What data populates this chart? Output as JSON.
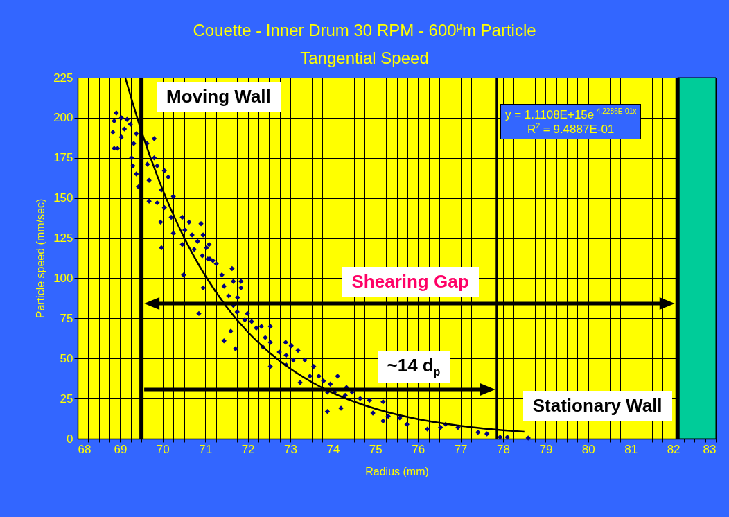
{
  "chart_data": {
    "type": "scatter",
    "title": "Couette - Inner Drum 30 RPM - 600$^{μ}$m Particle",
    "subtitle": "Tangential Speed",
    "xlabel": "Radius (mm)",
    "ylabel": "Particle speed (mm/sec)",
    "xlim": [
      68,
      83
    ],
    "ylim": [
      0,
      225
    ],
    "xticks": [
      68,
      {
        "value": 68.25,
        "label": null
      },
      {
        "value": 68.5,
        "label": null
      },
      {
        "value": 68.75,
        "label": null
      },
      69,
      {
        "value": 69.25,
        "label": null
      },
      {
        "value": 69.5,
        "label": null
      },
      {
        "value": 69.75,
        "label": null
      },
      70,
      {
        "value": 70.25,
        "label": null
      },
      {
        "value": 70.5,
        "label": null
      },
      {
        "value": 70.75,
        "label": null
      },
      71,
      {
        "value": 71.25,
        "label": null
      },
      {
        "value": 71.5,
        "label": null
      },
      {
        "value": 71.75,
        "label": null
      },
      72,
      {
        "value": 72.25,
        "label": null
      },
      {
        "value": 72.5,
        "label": null
      },
      {
        "value": 72.75,
        "label": null
      },
      73,
      {
        "value": 73.25,
        "label": null
      },
      {
        "value": 73.5,
        "label": null
      },
      {
        "value": 73.75,
        "label": null
      },
      74,
      {
        "value": 74.25,
        "label": null
      },
      {
        "value": 74.5,
        "label": null
      },
      {
        "value": 74.75,
        "label": null
      },
      75,
      {
        "value": 75.25,
        "label": null
      },
      {
        "value": 75.5,
        "label": null
      },
      {
        "value": 75.75,
        "label": null
      },
      76,
      {
        "value": 76.25,
        "label": null
      },
      {
        "value": 76.5,
        "label": null
      },
      {
        "value": 76.75,
        "label": null
      },
      77,
      {
        "value": 77.25,
        "label": null
      },
      {
        "value": 77.5,
        "label": null
      },
      {
        "value": 77.75,
        "label": null
      },
      78,
      {
        "value": 78.25,
        "label": null
      },
      {
        "value": 78.5,
        "label": null
      },
      {
        "value": 78.75,
        "label": null
      },
      79,
      {
        "value": 79.25,
        "label": null
      },
      {
        "value": 79.5,
        "label": null
      },
      {
        "value": 79.75,
        "label": null
      },
      80,
      {
        "value": 80.25,
        "label": null
      },
      {
        "value": 80.5,
        "label": null
      },
      {
        "value": 80.75,
        "label": null
      },
      81,
      {
        "value": 81.25,
        "label": null
      },
      {
        "value": 81.5,
        "label": null
      },
      {
        "value": 81.75,
        "label": null
      },
      82,
      {
        "value": 82.25,
        "label": null
      },
      {
        "value": 82.5,
        "label": null
      },
      {
        "value": 82.75,
        "label": null
      },
      83
    ],
    "yticks": [
      0,
      25,
      50,
      75,
      100,
      125,
      150,
      175,
      200,
      225
    ],
    "grid": true,
    "series": [
      {
        "marker": "diamond",
        "color": "#000080",
        "x": [
          68.91,
          68.86,
          68.83,
          68.86,
          68.94,
          69.03,
          69.16,
          69.1,
          69.03,
          69.24,
          69.38,
          69.32,
          69.27,
          69.3,
          69.38,
          69.43,
          69.68,
          69.64,
          69.8,
          69.63,
          69.8,
          69.87,
          70.04,
          70.13,
          69.68,
          69.87,
          69.97,
          70.25,
          70.04,
          69.95,
          70.2,
          70.46,
          70.62,
          70.9,
          70.25,
          70.52,
          70.46,
          70.69,
          69.97,
          70.95,
          70.74,
          70.93,
          71.06,
          71.18,
          71.09,
          70.82,
          70.49,
          71.03,
          71.11,
          71.26,
          71.63,
          71.66,
          71.84,
          71.84,
          70.95,
          71.39,
          71.44,
          71.55,
          71.76,
          71.66,
          71.75,
          70.85,
          71.99,
          71.93,
          72.09,
          72.2,
          71.6,
          71.44,
          71.71,
          72.32,
          72.53,
          72.41,
          72.53,
          72.36,
          72.89,
          73.02,
          73.18,
          72.74,
          72.9,
          73.07,
          73.34,
          72.9,
          72.53,
          73.23,
          73.55,
          73.67,
          73.46,
          73.78,
          73.94,
          74.11,
          73.87,
          74.04,
          73.87,
          74.19,
          74.32,
          74.45,
          74.29,
          74.64,
          74.86,
          74.94,
          75.18,
          75.18,
          75.3,
          75.57,
          75.74,
          76.22,
          76.53,
          76.65,
          76.94,
          77.41,
          77.62,
          77.93,
          78.1,
          78.59
        ],
        "values": [
          203,
          198,
          191,
          181,
          181,
          200,
          199,
          193,
          188,
          196,
          190,
          184,
          175,
          170,
          165,
          157,
          161,
          171,
          187,
          184,
          175,
          170,
          167,
          163,
          148,
          147,
          155,
          151,
          144,
          135,
          138,
          138,
          135,
          134,
          128,
          130,
          121,
          127,
          119,
          127,
          118,
          114,
          112,
          111,
          121,
          123,
          102,
          119,
          112,
          109,
          106,
          98,
          98,
          94,
          94,
          102,
          95,
          89,
          88,
          83,
          79,
          78,
          78,
          74,
          73,
          69,
          67,
          61,
          56,
          70,
          70,
          63,
          60,
          57,
          60,
          58,
          55,
          54,
          52,
          49,
          49,
          46,
          45,
          35,
          45,
          39,
          39,
          36,
          34,
          39,
          29,
          29,
          17,
          19,
          32,
          29,
          27,
          25,
          24,
          16,
          23,
          11,
          14,
          13,
          9,
          6,
          7,
          9,
          7,
          4,
          3,
          1,
          1,
          0.4
        ]
      },
      {
        "type": "line",
        "color": "#000000",
        "x": [
          69.12,
          69.5,
          70,
          70.5,
          71,
          71.5,
          72,
          72.5,
          73,
          73.5,
          74,
          74.5,
          75,
          75.5,
          76,
          76.5,
          77,
          77.5,
          78,
          78.5
        ],
        "values": [
          225,
          191.6,
          155.1,
          125.5,
          101.6,
          82.2,
          66.5,
          53.9,
          43.6,
          35.3,
          28.5,
          23.1,
          18.7,
          15.1,
          12.2,
          9.9,
          8,
          6.5,
          5.3,
          4.3
        ]
      }
    ],
    "ref_lines": [
      {
        "axis": "x",
        "value": 69.5,
        "label": "Moving Wall",
        "color": "#000000"
      },
      {
        "axis": "x",
        "value": 82.1,
        "label": "Stationary Wall",
        "color": "#000000"
      },
      {
        "axis": "x",
        "value": 77.85,
        "color": "#000000"
      }
    ],
    "bands": [
      {
        "axis": "x",
        "from": 82.1,
        "to": 83,
        "color": "#00cc99"
      }
    ],
    "annotations": [
      "Shearing Gap",
      "~14 d$_{p}$",
      "y = 1.1108E+15e$^{-4.2286E-01x}$",
      "R$^{2}$ = 9.4887E-01"
    ]
  }
}
